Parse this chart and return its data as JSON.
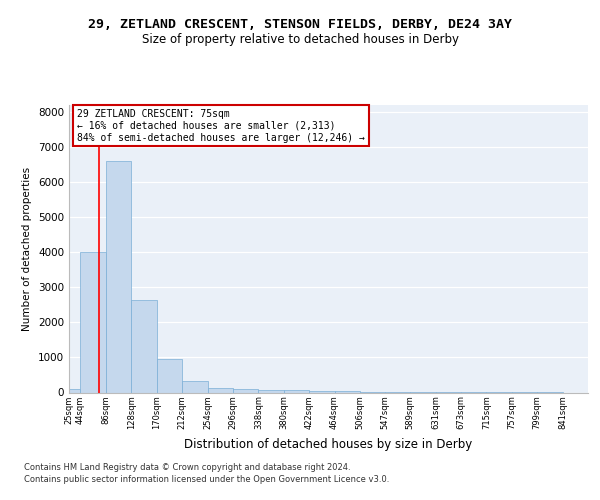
{
  "title": "29, ZETLAND CRESCENT, STENSON FIELDS, DERBY, DE24 3AY",
  "subtitle": "Size of property relative to detached houses in Derby",
  "xlabel": "Distribution of detached houses by size in Derby",
  "ylabel": "Number of detached properties",
  "bin_labels": [
    "25sqm",
    "44sqm",
    "86sqm",
    "128sqm",
    "170sqm",
    "212sqm",
    "254sqm",
    "296sqm",
    "338sqm",
    "380sqm",
    "422sqm",
    "464sqm",
    "506sqm",
    "547sqm",
    "589sqm",
    "631sqm",
    "673sqm",
    "715sqm",
    "757sqm",
    "799sqm",
    "841sqm"
  ],
  "bin_edges": [
    25,
    44,
    86,
    128,
    170,
    212,
    254,
    296,
    338,
    380,
    422,
    464,
    506,
    547,
    589,
    631,
    673,
    715,
    757,
    799,
    841
  ],
  "bar_values": [
    100,
    4000,
    6600,
    2650,
    950,
    330,
    140,
    100,
    80,
    70,
    50,
    30,
    20,
    10,
    5,
    5,
    3,
    2,
    1,
    1,
    0
  ],
  "bar_color": "#c5d8ed",
  "bar_edge_color": "#7aaed6",
  "redline_x": 75,
  "annotation_text": "29 ZETLAND CRESCENT: 75sqm\n← 16% of detached houses are smaller (2,313)\n84% of semi-detached houses are larger (12,246) →",
  "annotation_box_color": "#ffffff",
  "annotation_box_edge_color": "#cc0000",
  "ylim": [
    0,
    8200
  ],
  "yticks": [
    0,
    1000,
    2000,
    3000,
    4000,
    5000,
    6000,
    7000,
    8000
  ],
  "background_color": "#eaf0f8",
  "footer_line1": "Contains HM Land Registry data © Crown copyright and database right 2024.",
  "footer_line2": "Contains public sector information licensed under the Open Government Licence v3.0."
}
